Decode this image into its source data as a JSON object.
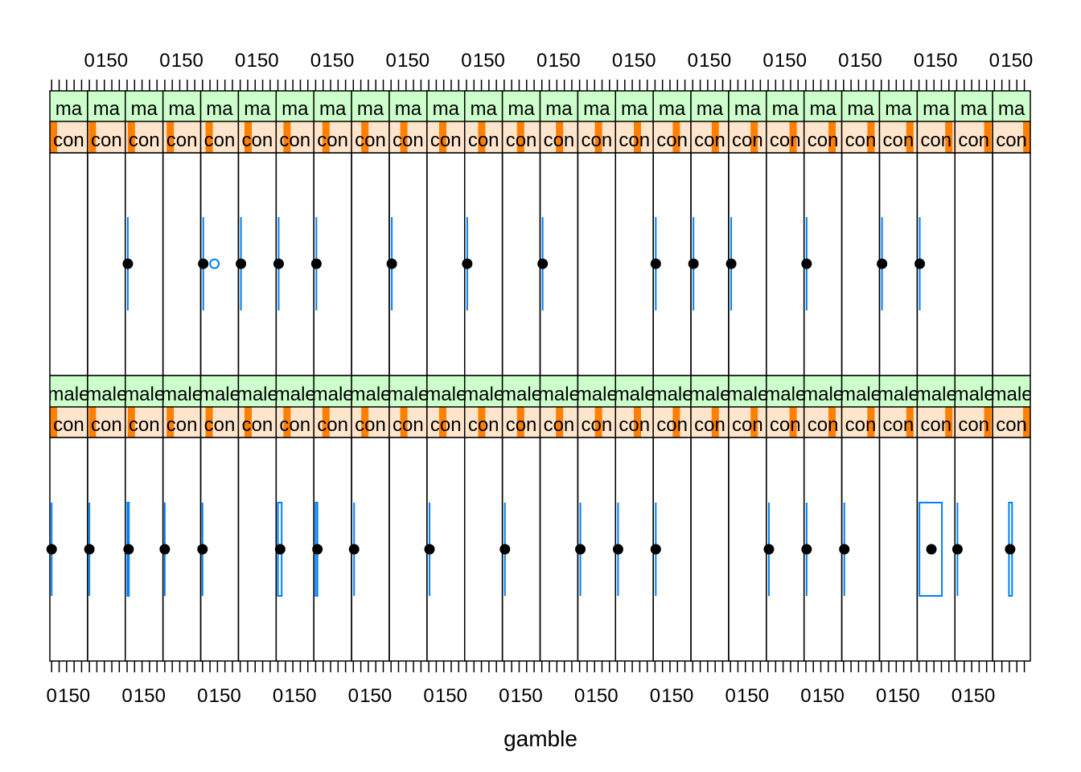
{
  "chart_data": {
    "type": "bwplot",
    "xlabel": "gamble",
    "tick_labels": [
      "0",
      "150"
    ],
    "xlim": [
      -12,
      240
    ],
    "tick_values": [
      0,
      150
    ],
    "minor_ticks": [
      0,
      50,
      100,
      150,
      200
    ],
    "colors": {
      "box": "#0080ff",
      "dot": "#000000",
      "strip_outer": "#ccffcc",
      "strip_inner": "#ffe5cc",
      "strip_level": "#ff7f00"
    },
    "rows": [
      {
        "strip_outer_label": "ma",
        "strip_inner_label": "con",
        "panels": [
          null,
          null,
          {
            "whisker_low": 5,
            "q1": 5,
            "median": 5,
            "q3": 5,
            "whisker_high": 5,
            "outliers": []
          },
          null,
          {
            "whisker_low": 5,
            "q1": 5,
            "median": 5,
            "q3": 5,
            "whisker_high": 5,
            "outliers": [
              80
            ]
          },
          {
            "whisker_low": 5,
            "q1": 5,
            "median": 5,
            "q3": 5,
            "whisker_high": 5,
            "outliers": []
          },
          {
            "whisker_low": 5,
            "q1": 5,
            "median": 5,
            "q3": 5,
            "whisker_high": 5,
            "outliers": []
          },
          {
            "whisker_low": 5,
            "q1": 5,
            "median": 5,
            "q3": 5,
            "whisker_high": 5,
            "outliers": []
          },
          null,
          {
            "whisker_low": 5,
            "q1": 5,
            "median": 5,
            "q3": 5,
            "whisker_high": 5,
            "outliers": []
          },
          null,
          {
            "whisker_low": 5,
            "q1": 5,
            "median": 5,
            "q3": 5,
            "whisker_high": 5,
            "outliers": []
          },
          null,
          {
            "whisker_low": 5,
            "q1": 5,
            "median": 5,
            "q3": 5,
            "whisker_high": 5,
            "outliers": []
          },
          null,
          null,
          {
            "whisker_low": 5,
            "q1": 5,
            "median": 5,
            "q3": 5,
            "whisker_high": 5,
            "outliers": []
          },
          {
            "whisker_low": 5,
            "q1": 5,
            "median": 5,
            "q3": 5,
            "whisker_high": 5,
            "outliers": []
          },
          {
            "whisker_low": 5,
            "q1": 5,
            "median": 5,
            "q3": 5,
            "whisker_high": 5,
            "outliers": []
          },
          null,
          {
            "whisker_low": 5,
            "q1": 5,
            "median": 5,
            "q3": 5,
            "whisker_high": 5,
            "outliers": []
          },
          null,
          {
            "whisker_low": 5,
            "q1": 5,
            "median": 5,
            "q3": 5,
            "whisker_high": 5,
            "outliers": []
          },
          {
            "whisker_low": 5,
            "q1": 5,
            "median": 5,
            "q3": 5,
            "whisker_high": 5,
            "outliers": []
          },
          null,
          null
        ]
      },
      {
        "strip_outer_label": "male",
        "strip_inner_label": "con",
        "panels": [
          {
            "whisker_low": 0,
            "q1": 0,
            "median": 0,
            "q3": 0,
            "whisker_high": 0,
            "outliers": []
          },
          {
            "whisker_low": 0,
            "q1": 0,
            "median": 0,
            "q3": 0,
            "whisker_high": 0,
            "outliers": []
          },
          {
            "whisker_low": 2,
            "q1": 2,
            "median": 10,
            "q3": 12,
            "whisker_high": 12,
            "outliers": []
          },
          {
            "whisker_low": 0,
            "q1": 0,
            "median": 0,
            "q3": 0,
            "whisker_high": 0,
            "outliers": []
          },
          {
            "whisker_low": 0,
            "q1": 0,
            "median": 0,
            "q3": 0,
            "whisker_high": 0,
            "outliers": []
          },
          null,
          {
            "whisker_low": 0,
            "q1": 0,
            "median": 15,
            "q3": 25,
            "whisker_high": 25,
            "outliers": []
          },
          {
            "whisker_low": 0,
            "q1": 0,
            "median": 12,
            "q3": 12,
            "whisker_high": 12,
            "outliers": []
          },
          {
            "whisker_low": 5,
            "q1": 5,
            "median": 5,
            "q3": 5,
            "whisker_high": 5,
            "outliers": []
          },
          null,
          {
            "whisker_low": 5,
            "q1": 5,
            "median": 5,
            "q3": 5,
            "whisker_high": 5,
            "outliers": []
          },
          null,
          {
            "whisker_low": 5,
            "q1": 5,
            "median": 5,
            "q3": 5,
            "whisker_high": 5,
            "outliers": []
          },
          null,
          {
            "whisker_low": 5,
            "q1": 5,
            "median": 5,
            "q3": 5,
            "whisker_high": 5,
            "outliers": []
          },
          {
            "whisker_low": 5,
            "q1": 5,
            "median": 5,
            "q3": 5,
            "whisker_high": 5,
            "outliers": []
          },
          {
            "whisker_low": 5,
            "q1": 5,
            "median": 5,
            "q3": 5,
            "whisker_high": 5,
            "outliers": []
          },
          null,
          null,
          {
            "whisker_low": 5,
            "q1": 5,
            "median": 5,
            "q3": 5,
            "whisker_high": 5,
            "outliers": []
          },
          {
            "whisker_low": 5,
            "q1": 5,
            "median": 5,
            "q3": 5,
            "whisker_high": 5,
            "outliers": []
          },
          {
            "whisker_low": 5,
            "q1": 5,
            "median": 5,
            "q3": 5,
            "whisker_high": 5,
            "outliers": []
          },
          null,
          {
            "whisker_low": 3,
            "q1": 3,
            "median": 83,
            "q3": 153,
            "whisker_high": 153,
            "outliers": []
          },
          {
            "whisker_low": 5,
            "q1": 5,
            "median": 5,
            "q3": 5,
            "whisker_high": 5,
            "outliers": []
          },
          {
            "whisker_low": 97,
            "q1": 97,
            "median": 105,
            "q3": 118,
            "whisker_high": 118,
            "outliers": []
          }
        ]
      }
    ]
  }
}
